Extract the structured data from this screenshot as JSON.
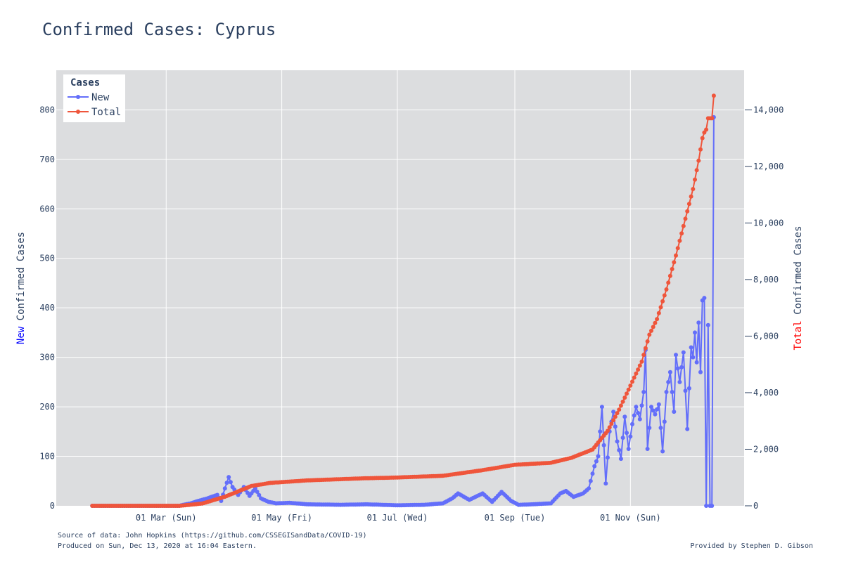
{
  "title": "Confirmed Cases: Cyprus",
  "colors": {
    "new": "#636efa",
    "total": "#ef553b",
    "plot_bg": "#dcdddf",
    "grid": "#ffffff",
    "text": "#2a3f5f",
    "new_word": "#0000ff",
    "total_word": "#ff0000"
  },
  "y_left_title": {
    "highlight": "New",
    "rest": " Confirmed Cases"
  },
  "y_right_title": {
    "highlight": "Total",
    "rest": " Confirmed Cases"
  },
  "footer": {
    "source": "Source of data: John Hopkins (https://github.com/CSSEGISandData/COVID-19)",
    "produced": "Produced on Sun, Dec 13, 2020 at 16:04 Eastern.",
    "credit": "Provided by Stephen D. Gibson"
  },
  "chart_data": {
    "type": "line",
    "legend": {
      "title": "Cases",
      "position": "top-left"
    },
    "x_ticks": [
      {
        "date": "2020-03-01",
        "label": "01 Mar (Sun)"
      },
      {
        "date": "2020-05-01",
        "label": "01 May (Fri)"
      },
      {
        "date": "2020-07-01",
        "label": "01 Jul (Wed)"
      },
      {
        "date": "2020-09-01",
        "label": "01 Sep (Tue)"
      },
      {
        "date": "2020-11-01",
        "label": "01 Nov (Sun)"
      }
    ],
    "x_range": [
      "2020-01-03",
      "2020-12-31"
    ],
    "y_left": {
      "range": [
        0,
        880
      ],
      "ticks": [
        0,
        100,
        200,
        300,
        400,
        500,
        600,
        700,
        800
      ],
      "tick_labels": [
        "0",
        "100",
        "200",
        "300",
        "400",
        "500",
        "600",
        "700",
        "800"
      ]
    },
    "y_right": {
      "range": [
        0,
        15400
      ],
      "ticks": [
        0,
        2000,
        4000,
        6000,
        8000,
        10000,
        12000,
        14000
      ],
      "tick_labels": [
        "0",
        "2,000",
        "4,000",
        "6,000",
        "8,000",
        "10,000",
        "12,000",
        "14,000"
      ]
    },
    "grid": true,
    "series": [
      {
        "name": "New",
        "axis": "left",
        "keypoints": [
          [
            "2020-01-22",
            0
          ],
          [
            "2020-03-08",
            0
          ],
          [
            "2020-03-10",
            2
          ],
          [
            "2020-03-14",
            5
          ],
          [
            "2020-03-18",
            10
          ],
          [
            "2020-03-22",
            14
          ],
          [
            "2020-03-25",
            18
          ],
          [
            "2020-03-28",
            22
          ],
          [
            "2020-03-30",
            10
          ],
          [
            "2020-04-01",
            35
          ],
          [
            "2020-04-03",
            58
          ],
          [
            "2020-04-05",
            38
          ],
          [
            "2020-04-08",
            22
          ],
          [
            "2020-04-11",
            38
          ],
          [
            "2020-04-14",
            20
          ],
          [
            "2020-04-17",
            35
          ],
          [
            "2020-04-20",
            15
          ],
          [
            "2020-04-24",
            8
          ],
          [
            "2020-04-28",
            5
          ],
          [
            "2020-05-05",
            6
          ],
          [
            "2020-05-15",
            3
          ],
          [
            "2020-06-01",
            2
          ],
          [
            "2020-06-15",
            3
          ],
          [
            "2020-07-01",
            1
          ],
          [
            "2020-07-15",
            2
          ],
          [
            "2020-07-25",
            5
          ],
          [
            "2020-07-30",
            15
          ],
          [
            "2020-08-02",
            25
          ],
          [
            "2020-08-08",
            12
          ],
          [
            "2020-08-15",
            25
          ],
          [
            "2020-08-20",
            8
          ],
          [
            "2020-08-25",
            28
          ],
          [
            "2020-08-30",
            10
          ],
          [
            "2020-09-03",
            2
          ],
          [
            "2020-09-10",
            3
          ],
          [
            "2020-09-20",
            5
          ],
          [
            "2020-09-25",
            25
          ],
          [
            "2020-09-28",
            30
          ],
          [
            "2020-10-02",
            18
          ],
          [
            "2020-10-07",
            25
          ],
          [
            "2020-10-10",
            35
          ],
          [
            "2020-10-13",
            80
          ],
          [
            "2020-10-15",
            100
          ],
          [
            "2020-10-17",
            200
          ],
          [
            "2020-10-19",
            45
          ],
          [
            "2020-10-21",
            150
          ],
          [
            "2020-10-23",
            190
          ],
          [
            "2020-10-25",
            130
          ],
          [
            "2020-10-27",
            95
          ],
          [
            "2020-10-29",
            180
          ],
          [
            "2020-10-31",
            115
          ],
          [
            "2020-11-02",
            165
          ],
          [
            "2020-11-04",
            200
          ],
          [
            "2020-11-06",
            175
          ],
          [
            "2020-11-08",
            230
          ],
          [
            "2020-11-09",
            315
          ],
          [
            "2020-11-10",
            115
          ],
          [
            "2020-11-12",
            200
          ],
          [
            "2020-11-14",
            185
          ],
          [
            "2020-11-16",
            205
          ],
          [
            "2020-11-18",
            110
          ],
          [
            "2020-11-20",
            230
          ],
          [
            "2020-11-22",
            270
          ],
          [
            "2020-11-24",
            190
          ],
          [
            "2020-11-25",
            305
          ],
          [
            "2020-11-27",
            250
          ],
          [
            "2020-11-29",
            310
          ],
          [
            "2020-12-01",
            155
          ],
          [
            "2020-12-03",
            320
          ],
          [
            "2020-12-04",
            300
          ],
          [
            "2020-12-05",
            350
          ],
          [
            "2020-12-06",
            290
          ],
          [
            "2020-12-07",
            370
          ],
          [
            "2020-12-08",
            270
          ],
          [
            "2020-12-09",
            415
          ],
          [
            "2020-12-10",
            420
          ],
          [
            "2020-12-11",
            0
          ],
          [
            "2020-12-12",
            365
          ],
          [
            "2020-12-13",
            0
          ],
          [
            "2020-12-14",
            0
          ],
          [
            "2020-12-15",
            785
          ]
        ]
      },
      {
        "name": "Total",
        "axis": "right",
        "keypoints": [
          [
            "2020-01-22",
            0
          ],
          [
            "2020-03-08",
            0
          ],
          [
            "2020-03-20",
            80
          ],
          [
            "2020-04-01",
            320
          ],
          [
            "2020-04-15",
            700
          ],
          [
            "2020-04-25",
            810
          ],
          [
            "2020-05-15",
            900
          ],
          [
            "2020-06-15",
            975
          ],
          [
            "2020-07-01",
            1000
          ],
          [
            "2020-07-25",
            1060
          ],
          [
            "2020-08-15",
            1260
          ],
          [
            "2020-09-01",
            1450
          ],
          [
            "2020-09-20",
            1520
          ],
          [
            "2020-10-01",
            1700
          ],
          [
            "2020-10-12",
            1990
          ],
          [
            "2020-10-20",
            2650
          ],
          [
            "2020-10-26",
            3400
          ],
          [
            "2020-11-01",
            4250
          ],
          [
            "2020-11-07",
            5100
          ],
          [
            "2020-11-11",
            6050
          ],
          [
            "2020-11-15",
            6600
          ],
          [
            "2020-11-20",
            7650
          ],
          [
            "2020-11-25",
            8850
          ],
          [
            "2020-11-30",
            10150
          ],
          [
            "2020-12-04",
            11200
          ],
          [
            "2020-12-07",
            12200
          ],
          [
            "2020-12-09",
            13000
          ],
          [
            "2020-12-10",
            13200
          ],
          [
            "2020-12-11",
            13300
          ],
          [
            "2020-12-12",
            13700
          ],
          [
            "2020-12-13",
            13700
          ],
          [
            "2020-12-14",
            13700
          ],
          [
            "2020-12-15",
            14500
          ]
        ]
      }
    ]
  }
}
